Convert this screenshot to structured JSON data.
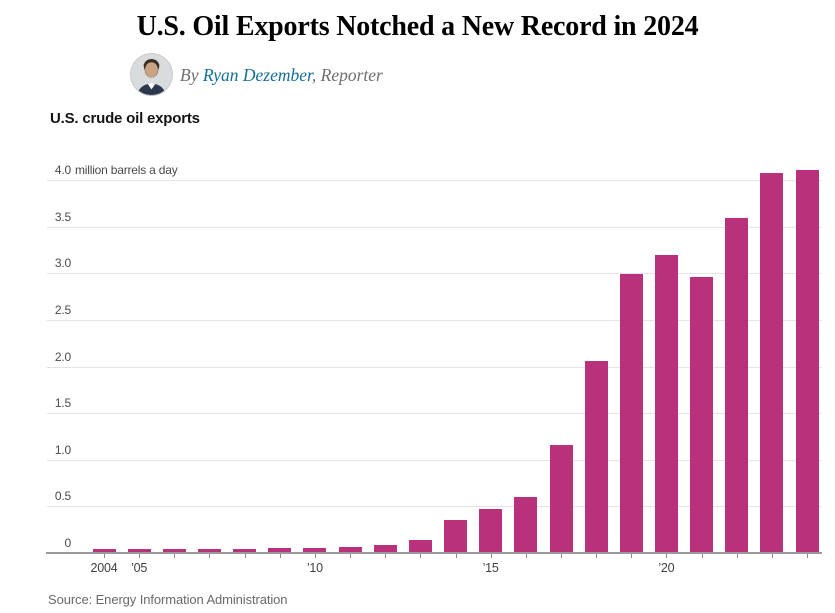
{
  "article": {
    "headline": "U.S. Oil Exports Notched a New Record in 2024",
    "byline": {
      "prefix": "By ",
      "author": "Ryan Dezember",
      "suffix": ", Reporter"
    },
    "source_note": "Source: Energy Information Administration"
  },
  "colors": {
    "bar": "#b8317a",
    "author_link": "#146e96",
    "gridline": "#e4e4e4",
    "axis": "#9a9a9a"
  },
  "icons": {
    "avatar": "reporter-headshot-photo"
  },
  "chart_data": {
    "type": "bar",
    "title": "U.S. crude oil exports",
    "ylabel": "million barrels a day",
    "categories": [
      2004,
      2005,
      2006,
      2007,
      2008,
      2009,
      2010,
      2011,
      2012,
      2013,
      2014,
      2015,
      2016,
      2017,
      2018,
      2019,
      2020,
      2021,
      2022,
      2023,
      2024
    ],
    "values": [
      0.03,
      0.03,
      0.03,
      0.03,
      0.03,
      0.04,
      0.04,
      0.05,
      0.07,
      0.13,
      0.34,
      0.46,
      0.59,
      1.15,
      2.05,
      2.98,
      3.19,
      2.95,
      3.58,
      4.06,
      4.1
    ],
    "ylim": [
      0,
      4.0
    ],
    "y_axis": {
      "tick_labels": [
        "0",
        "0.5",
        "1.0",
        "1.5",
        "2.0",
        "2.5",
        "3.0",
        "3.5",
        "4.0"
      ],
      "max": 4.0,
      "top_tick_suffix": "million barrels a day"
    },
    "x_axis": {
      "tick_labels": [
        {
          "year": 2004,
          "label": "2004"
        },
        {
          "year": 2005,
          "label": "’05"
        },
        {
          "year": 2010,
          "label": "’10"
        },
        {
          "year": 2015,
          "label": "’15"
        },
        {
          "year": 2020,
          "label": "’20"
        }
      ]
    },
    "grid": true,
    "legend": "none"
  }
}
